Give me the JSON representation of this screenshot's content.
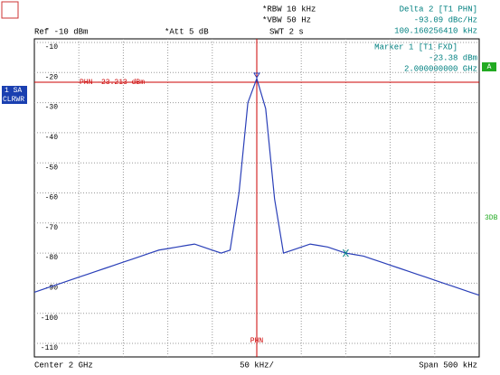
{
  "chart_data": {
    "type": "line",
    "header": {
      "ref": "Ref -10 dBm",
      "att": "*Att 5 dB",
      "rbw": "*RBW 10 kHz",
      "vbw": "*VBW 50 Hz",
      "swt": "SWT 2 s"
    },
    "markers": [
      {
        "title": "Delta 2 [T1 PHN]",
        "level": "-93.09 dBc/Hz",
        "freq": "100.160256410 kHz"
      },
      {
        "title": "Marker 1 [T1 FXD]",
        "level": "-23.38 dBm",
        "freq": "2.000000000 GHz"
      }
    ],
    "phn_line": {
      "label": "PHN -23.213 dBm",
      "value": -23.213
    },
    "phn_marker": "PHN",
    "footer": {
      "center": "Center 2 GHz",
      "div": "50 kHz/",
      "span": "Span 500 kHz"
    },
    "side": {
      "trace": "1 SA",
      "mode": "CLRWR",
      "a": "A",
      "db": "3DB"
    },
    "series": [
      {
        "color": "#2a3fb8",
        "values": [
          -93,
          -92,
          -91,
          -90,
          -89,
          -88,
          -87,
          -86,
          -85,
          -84,
          -83,
          -82,
          -81,
          -80,
          -79,
          -78.5,
          -78,
          -77.5,
          -77,
          -78,
          -79,
          -80,
          -79,
          -60,
          -30,
          -22,
          -32,
          -62,
          -80,
          -79,
          -78,
          -77,
          -77.5,
          -78,
          -79,
          -80,
          -80.5,
          -81,
          -82,
          -83,
          -84,
          -85,
          -86,
          -87,
          -88,
          -89,
          -90,
          -91,
          -92,
          -93,
          -94
        ]
      }
    ],
    "ylim": [
      -110,
      -10
    ],
    "yticks": [
      -10,
      -20,
      -30,
      -40,
      -50,
      -60,
      -70,
      -80,
      -90,
      -100,
      -110
    ],
    "grid": true
  }
}
